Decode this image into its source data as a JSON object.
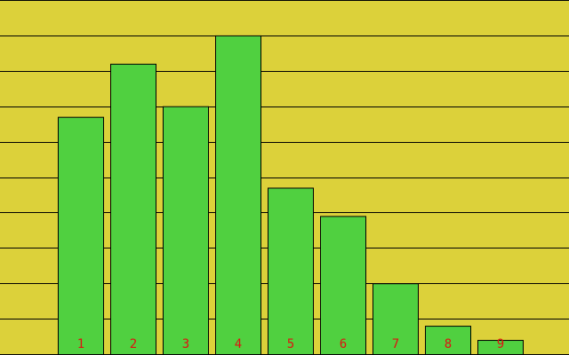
{
  "chart_data": {
    "type": "bar",
    "categories": [
      null,
      "1",
      "2",
      "3",
      "4",
      "5",
      "6",
      "7",
      "8",
      "9"
    ],
    "values": [
      0,
      6.7,
      8.2,
      7.0,
      9.0,
      4.7,
      3.9,
      2.0,
      0.8,
      0.4
    ],
    "color": "#50d040",
    "background": "#dcd13a",
    "label_color": "#e01010",
    "ylim": [
      0,
      10
    ],
    "yticks": [
      0,
      1,
      2,
      3,
      4,
      5,
      6,
      7,
      8,
      9,
      10
    ],
    "grid": true
  }
}
